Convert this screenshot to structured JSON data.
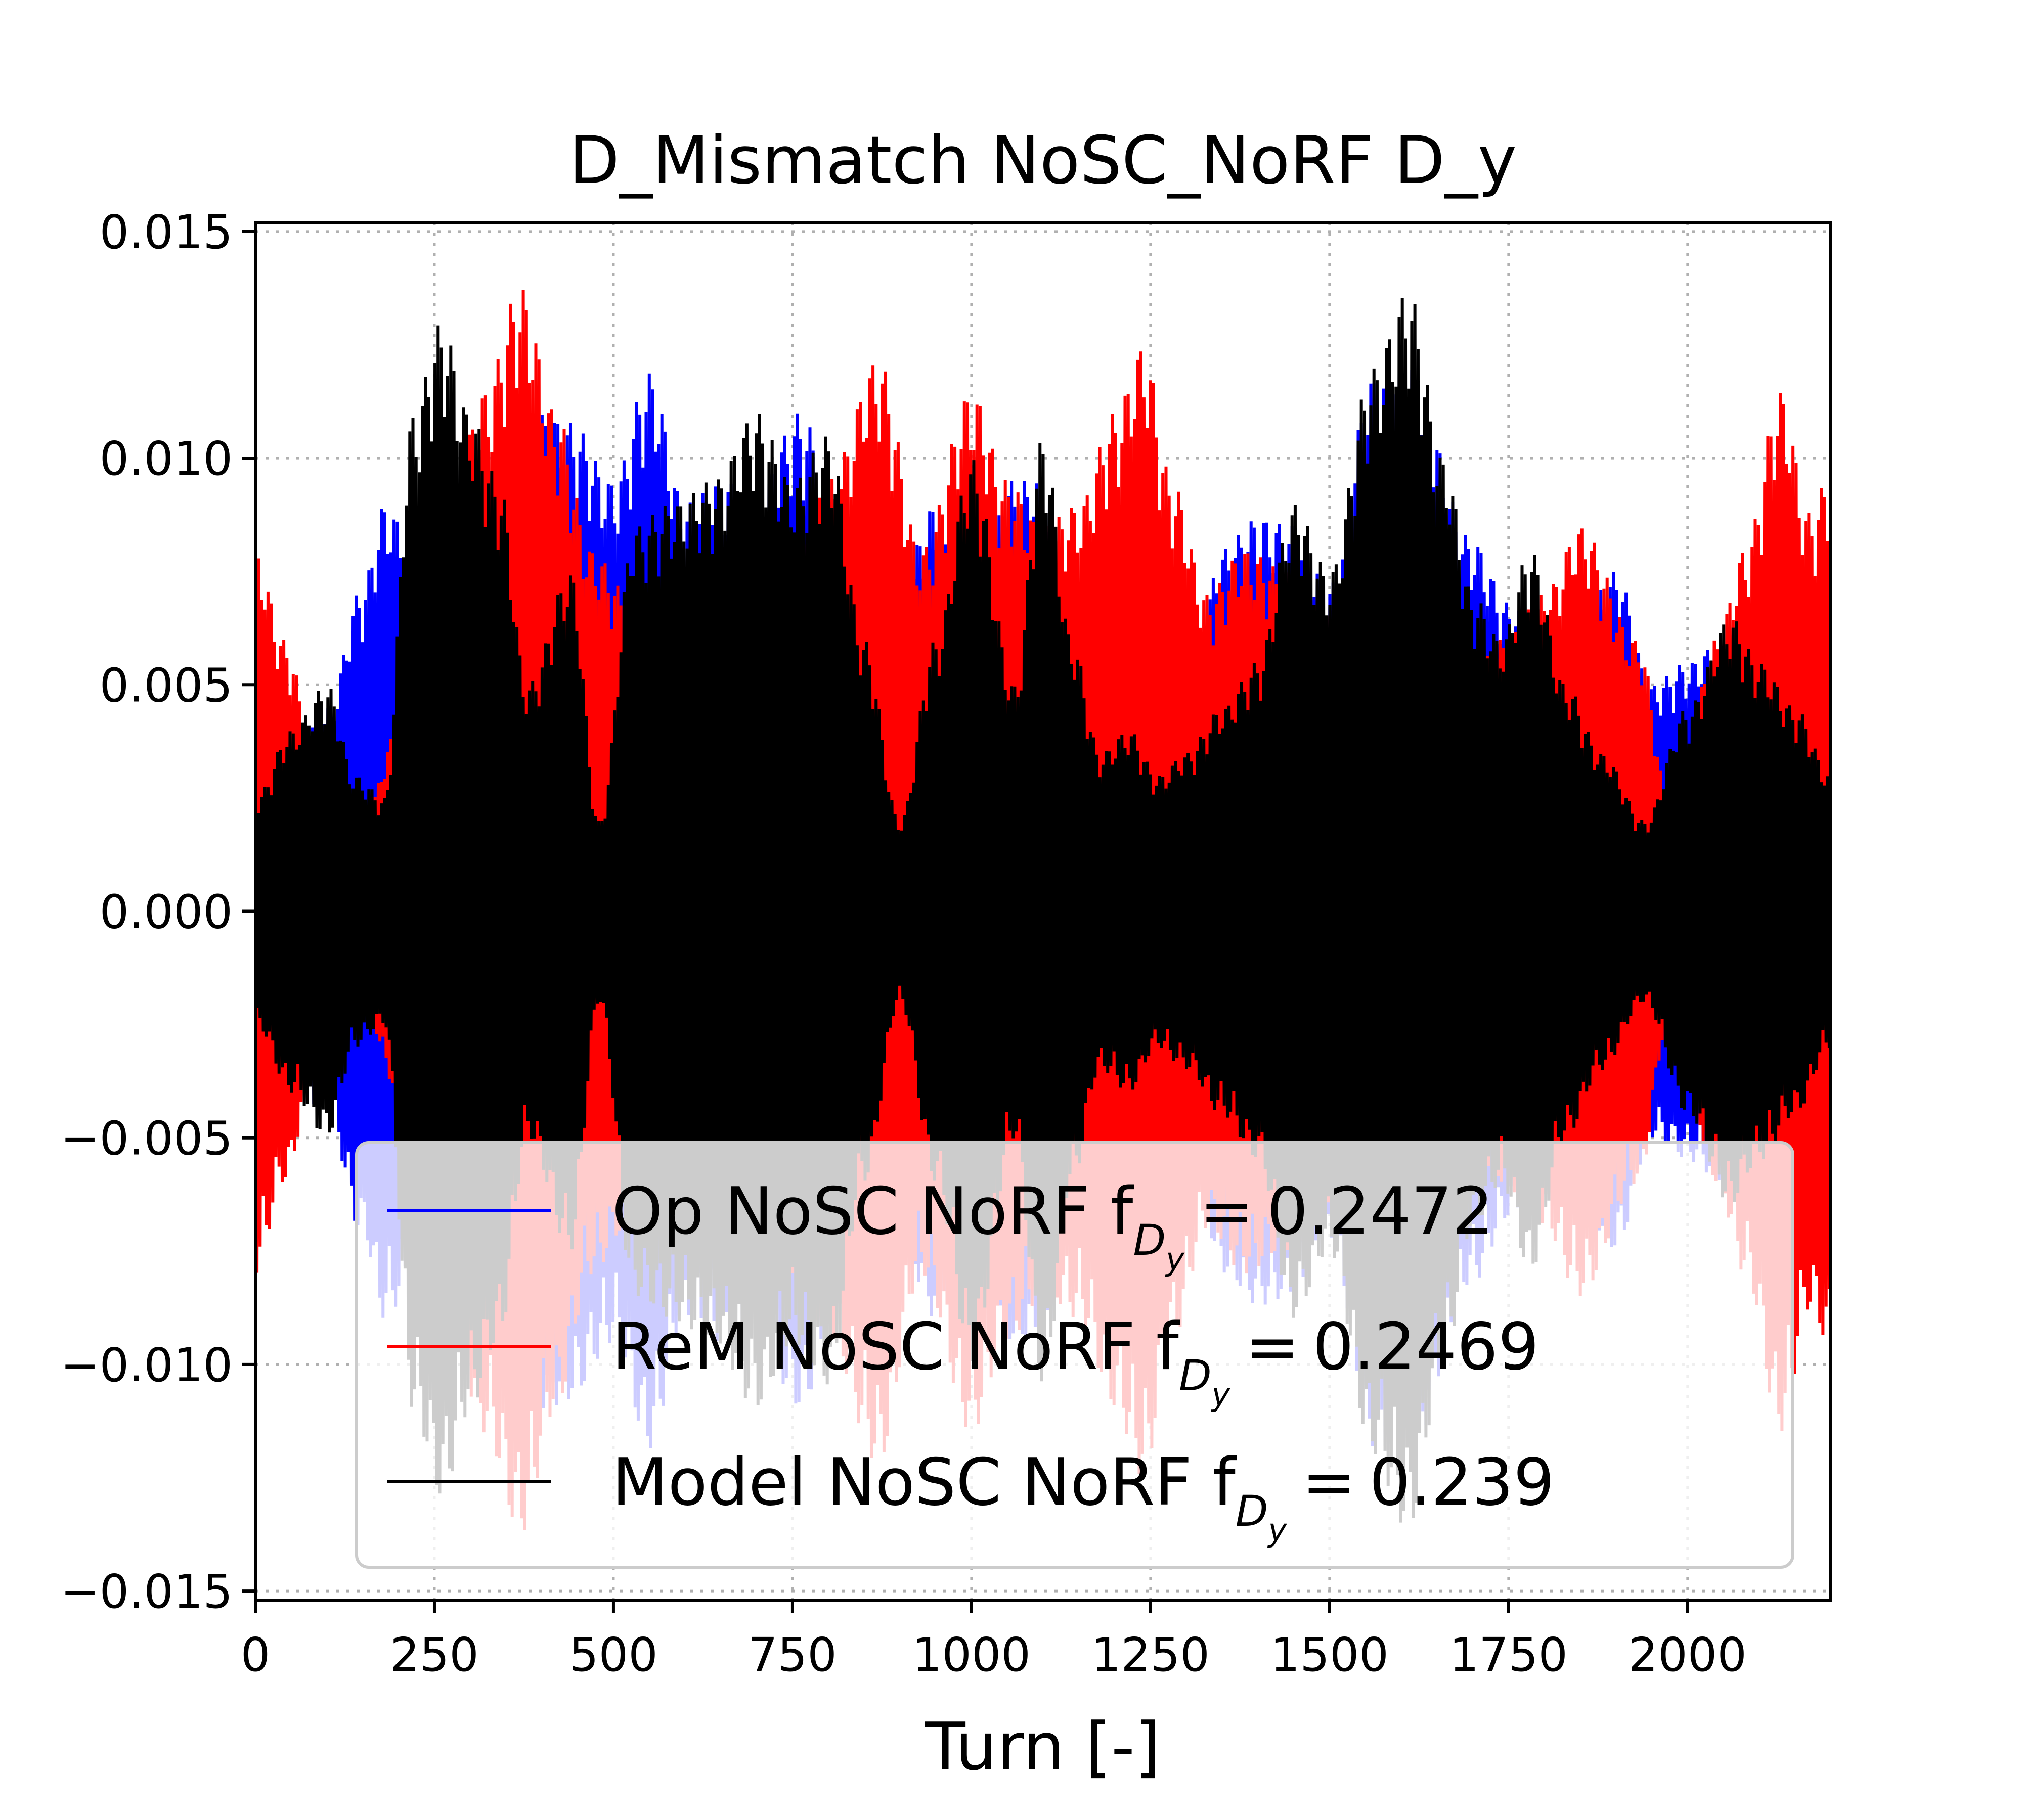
{
  "chart_data": {
    "type": "line",
    "title": "D_Mismatch NoSC_NoRF D_y",
    "xlabel": "Turn [-]",
    "ylabel": "",
    "xlim": [
      0,
      2200
    ],
    "ylim": [
      -0.0152,
      0.0152
    ],
    "xticks": [
      0,
      250,
      500,
      750,
      1000,
      1250,
      1500,
      1750,
      2000
    ],
    "xtick_labels": [
      "0",
      "250",
      "500",
      "750",
      "1000",
      "1250",
      "1500",
      "1750",
      "2000"
    ],
    "yticks": [
      0.015,
      0.01,
      0.005,
      0.0,
      -0.005,
      -0.01,
      -0.015
    ],
    "ytick_labels": [
      "0.015",
      "0.010",
      "0.005",
      "0.000",
      "−0.005",
      "−0.010",
      "−0.015"
    ],
    "grid": true,
    "legend_position": "lower-right",
    "series": [
      {
        "name": "Op NoSC NoRF",
        "legend_prefix": "Op NoSC NoRF f",
        "legend_value": "0.2472",
        "color": "#0000ff",
        "envelope": {
          "x": [
            0,
            100,
            150,
            180,
            210,
            260,
            320,
            400,
            440,
            500,
            550,
            600,
            650,
            700,
            760,
            830,
            880,
            950,
            1000,
            1050,
            1100,
            1150,
            1200,
            1250,
            1300,
            1350,
            1400,
            1450,
            1500,
            1560,
            1610,
            1700,
            1750,
            1800,
            1850,
            1900,
            1950,
            2000,
            2050,
            2100,
            2150,
            2200
          ],
          "amp": [
            0.0025,
            0.0045,
            0.0072,
            0.009,
            0.0085,
            0.0105,
            0.0096,
            0.011,
            0.0108,
            0.0095,
            0.0119,
            0.009,
            0.0095,
            0.0093,
            0.011,
            0.008,
            0.006,
            0.009,
            0.004,
            0.0095,
            0.0095,
            0.0055,
            0.003,
            0.0032,
            0.004,
            0.008,
            0.0087,
            0.0085,
            0.0072,
            0.0118,
            0.012,
            0.0082,
            0.0068,
            0.006,
            0.0065,
            0.0075,
            0.005,
            0.0055,
            0.006,
            0.0065,
            0.0045,
            0.0035
          ]
        }
      },
      {
        "name": "ReM NoSC NoRF",
        "legend_prefix": "ReM NoSC NoRF f",
        "legend_value": "0.2469",
        "color": "#ff0000",
        "envelope": {
          "x": [
            0,
            40,
            90,
            140,
            200,
            260,
            320,
            370,
            420,
            470,
            520,
            580,
            640,
            700,
            760,
            800,
            870,
            930,
            1000,
            1050,
            1100,
            1150,
            1200,
            1240,
            1280,
            1330,
            1380,
            1440,
            1500,
            1560,
            1620,
            1680,
            1740,
            1800,
            1850,
            1930,
            1980,
            2040,
            2080,
            2130,
            2170,
            2200
          ],
          "amp": [
            0.008,
            0.006,
            0.003,
            0.0015,
            0.004,
            0.008,
            0.0115,
            0.0138,
            0.011,
            0.008,
            0.007,
            0.0055,
            0.007,
            0.0085,
            0.008,
            0.0095,
            0.0122,
            0.008,
            0.0115,
            0.0095,
            0.0085,
            0.009,
            0.011,
            0.0125,
            0.0095,
            0.007,
            0.008,
            0.0075,
            0.0065,
            0.004,
            0.0035,
            0.0045,
            0.006,
            0.007,
            0.0085,
            0.006,
            0.002,
            0.006,
            0.008,
            0.0115,
            0.0088,
            0.0097
          ]
        }
      },
      {
        "name": "Model NoSC NoRF",
        "legend_prefix": "Model NoSC NoRF f",
        "legend_value": "0.239",
        "color": "#000000",
        "envelope": {
          "x": [
            0,
            50,
            100,
            140,
            180,
            220,
            260,
            300,
            340,
            380,
            440,
            480,
            530,
            580,
            640,
            700,
            750,
            800,
            850,
            900,
            950,
            1000,
            1060,
            1100,
            1140,
            1180,
            1220,
            1260,
            1300,
            1350,
            1400,
            1450,
            1500,
            1560,
            1610,
            1660,
            1700,
            1740,
            1780,
            1830,
            1880,
            1940,
            2000,
            2060,
            2100,
            2150,
            2200
          ],
          "amp": [
            0.0025,
            0.004,
            0.005,
            0.003,
            0.0025,
            0.011,
            0.013,
            0.011,
            0.0095,
            0.005,
            0.0075,
            0.002,
            0.0085,
            0.009,
            0.0095,
            0.011,
            0.0095,
            0.0105,
            0.006,
            0.002,
            0.006,
            0.01,
            0.005,
            0.0105,
            0.006,
            0.0035,
            0.004,
            0.003,
            0.0035,
            0.0045,
            0.0055,
            0.009,
            0.0075,
            0.012,
            0.0137,
            0.01,
            0.007,
            0.006,
            0.008,
            0.005,
            0.0035,
            0.002,
            0.0045,
            0.0065,
            0.0055,
            0.0045,
            0.003
          ]
        }
      }
    ]
  },
  "legend": {
    "subscript": "D",
    "subsubscript": "y",
    "equals": "="
  }
}
